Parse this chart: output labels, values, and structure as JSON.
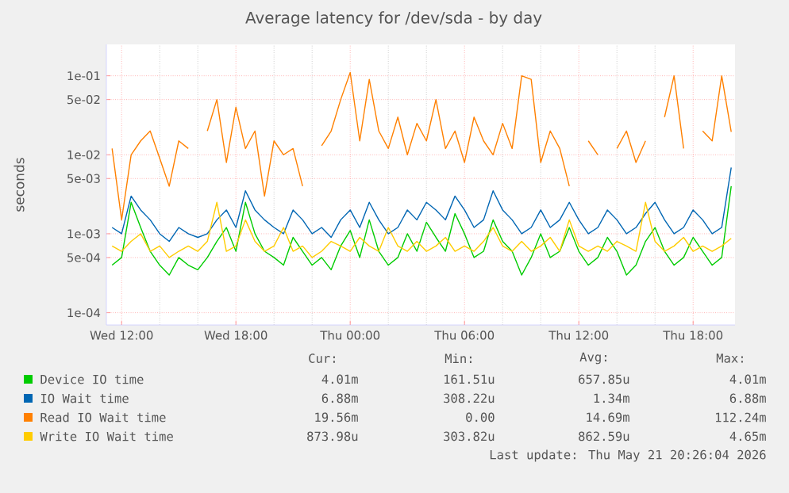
{
  "chart_data": {
    "type": "line",
    "title": "Average latency for /dev/sda - by day",
    "ylabel": "seconds",
    "log": "y",
    "grid": true,
    "legend": "bottom",
    "marker": "none",
    "line_style": "solid",
    "xlim": [
      "2026-05-20T11:12",
      "2026-05-21T20:12"
    ],
    "ylim": [
      7e-05,
      0.25
    ],
    "xticks": [
      {
        "value": "2026-05-20T12:00",
        "label": "Wed 12:00"
      },
      {
        "value": "2026-05-20T18:00",
        "label": "Wed 18:00"
      },
      {
        "value": "2026-05-21T00:00",
        "label": "Thu 00:00"
      },
      {
        "value": "2026-05-21T06:00",
        "label": "Thu 06:00"
      },
      {
        "value": "2026-05-21T12:00",
        "label": "Thu 12:00"
      },
      {
        "value": "2026-05-21T18:00",
        "label": "Thu 18:00"
      }
    ],
    "yticks": [
      {
        "value": 0.1,
        "label": "1e-01"
      },
      {
        "value": 0.05,
        "label": "5e-02"
      },
      {
        "value": 0.01,
        "label": "1e-02"
      },
      {
        "value": 0.005,
        "label": "5e-03"
      },
      {
        "value": 0.001,
        "label": "1e-03"
      },
      {
        "value": 0.0005,
        "label": "5e-04"
      },
      {
        "value": 0.0001,
        "label": "1e-04"
      }
    ],
    "x": [
      "2026-05-20T11:30",
      "2026-05-20T12:00",
      "2026-05-20T12:30",
      "2026-05-20T13:00",
      "2026-05-20T13:30",
      "2026-05-20T14:00",
      "2026-05-20T14:30",
      "2026-05-20T15:00",
      "2026-05-20T15:30",
      "2026-05-20T16:00",
      "2026-05-20T16:30",
      "2026-05-20T17:00",
      "2026-05-20T17:30",
      "2026-05-20T18:00",
      "2026-05-20T18:30",
      "2026-05-20T19:00",
      "2026-05-20T19:30",
      "2026-05-20T20:00",
      "2026-05-20T20:30",
      "2026-05-20T21:00",
      "2026-05-20T21:30",
      "2026-05-20T22:00",
      "2026-05-20T22:30",
      "2026-05-20T23:00",
      "2026-05-20T23:30",
      "2026-05-21T00:00",
      "2026-05-21T00:30",
      "2026-05-21T01:00",
      "2026-05-21T01:30",
      "2026-05-21T02:00",
      "2026-05-21T02:30",
      "2026-05-21T03:00",
      "2026-05-21T03:30",
      "2026-05-21T04:00",
      "2026-05-21T04:30",
      "2026-05-21T05:00",
      "2026-05-21T05:30",
      "2026-05-21T06:00",
      "2026-05-21T06:30",
      "2026-05-21T07:00",
      "2026-05-21T07:30",
      "2026-05-21T08:00",
      "2026-05-21T08:30",
      "2026-05-21T09:00",
      "2026-05-21T09:30",
      "2026-05-21T10:00",
      "2026-05-21T10:30",
      "2026-05-21T11:00",
      "2026-05-21T11:30",
      "2026-05-21T12:00",
      "2026-05-21T12:30",
      "2026-05-21T13:00",
      "2026-05-21T13:30",
      "2026-05-21T14:00",
      "2026-05-21T14:30",
      "2026-05-21T15:00",
      "2026-05-21T15:30",
      "2026-05-21T16:00",
      "2026-05-21T16:30",
      "2026-05-21T17:00",
      "2026-05-21T17:30",
      "2026-05-21T18:00",
      "2026-05-21T18:30",
      "2026-05-21T19:00",
      "2026-05-21T19:30",
      "2026-05-21T20:00"
    ],
    "series": [
      {
        "name": "Device IO time",
        "color": "#00cc00",
        "values": [
          0.0004,
          0.0005,
          0.0025,
          0.0012,
          0.0006,
          0.0004,
          0.0003,
          0.0005,
          0.0004,
          0.00035,
          0.0005,
          0.0008,
          0.0012,
          0.0006,
          0.0025,
          0.001,
          0.0006,
          0.0005,
          0.0004,
          0.0009,
          0.0006,
          0.0004,
          0.0005,
          0.00035,
          0.0007,
          0.0011,
          0.0005,
          0.0015,
          0.0006,
          0.0004,
          0.0005,
          0.001,
          0.0006,
          0.0014,
          0.0009,
          0.0006,
          0.0018,
          0.001,
          0.0005,
          0.0006,
          0.0015,
          0.0008,
          0.0006,
          0.0003,
          0.0005,
          0.001,
          0.0005,
          0.0006,
          0.0012,
          0.0006,
          0.0004,
          0.0005,
          0.0009,
          0.0006,
          0.0003,
          0.0004,
          0.0008,
          0.0012,
          0.0006,
          0.0004,
          0.0005,
          0.0009,
          0.0006,
          0.0004,
          0.0005,
          0.00401
        ]
      },
      {
        "name": "IO Wait time",
        "color": "#0066b3",
        "values": [
          0.0012,
          0.001,
          0.003,
          0.002,
          0.0015,
          0.001,
          0.0008,
          0.0012,
          0.001,
          0.0009,
          0.001,
          0.0015,
          0.002,
          0.0012,
          0.0035,
          0.002,
          0.0015,
          0.0012,
          0.001,
          0.002,
          0.0015,
          0.001,
          0.0012,
          0.0009,
          0.0015,
          0.002,
          0.0012,
          0.0025,
          0.0015,
          0.001,
          0.0012,
          0.002,
          0.0015,
          0.0025,
          0.002,
          0.0015,
          0.003,
          0.002,
          0.0012,
          0.0015,
          0.0035,
          0.002,
          0.0015,
          0.001,
          0.0012,
          0.002,
          0.0012,
          0.0015,
          0.0025,
          0.0015,
          0.001,
          0.0012,
          0.002,
          0.0015,
          0.001,
          0.0012,
          0.0018,
          0.0025,
          0.0015,
          0.001,
          0.0012,
          0.002,
          0.0015,
          0.001,
          0.0012,
          0.00688
        ]
      },
      {
        "name": "Read IO Wait time",
        "color": "#ff8000",
        "values": [
          0.012,
          0.0015,
          0.01,
          0.015,
          0.02,
          0.009,
          0.004,
          0.015,
          0.012,
          null,
          0.02,
          0.05,
          0.008,
          0.04,
          0.012,
          0.02,
          0.003,
          0.015,
          0.01,
          0.012,
          0.004,
          null,
          0.013,
          0.02,
          0.05,
          0.11,
          0.015,
          0.09,
          0.02,
          0.012,
          0.03,
          0.01,
          0.025,
          0.015,
          0.05,
          0.012,
          0.02,
          0.008,
          0.03,
          0.015,
          0.01,
          0.025,
          0.012,
          0.1,
          0.09,
          0.008,
          0.02,
          0.012,
          0.004,
          null,
          0.015,
          0.01,
          null,
          0.012,
          0.02,
          0.008,
          0.015,
          null,
          0.03,
          0.1,
          0.012,
          null,
          0.02,
          0.015,
          0.1,
          0.01956
        ]
      },
      {
        "name": "Write IO Wait time",
        "color": "#ffcc00",
        "values": [
          0.0007,
          0.0006,
          0.0008,
          0.001,
          0.0006,
          0.0007,
          0.0005,
          0.0006,
          0.0007,
          0.0006,
          0.0008,
          0.0025,
          0.0006,
          0.0007,
          0.0015,
          0.0008,
          0.0006,
          0.0007,
          0.0012,
          0.0006,
          0.0007,
          0.0005,
          0.0006,
          0.0008,
          0.0007,
          0.0006,
          0.0009,
          0.0007,
          0.0006,
          0.0012,
          0.0007,
          0.0006,
          0.0008,
          0.0006,
          0.0007,
          0.0009,
          0.0006,
          0.0007,
          0.0006,
          0.0008,
          0.0012,
          0.0007,
          0.0006,
          0.0008,
          0.0006,
          0.0007,
          0.0009,
          0.0006,
          0.0015,
          0.0007,
          0.0006,
          0.0007,
          0.0006,
          0.0008,
          0.0007,
          0.0006,
          0.0025,
          0.0008,
          0.0006,
          0.0007,
          0.0009,
          0.0006,
          0.0007,
          0.0006,
          0.0007,
          0.00087398
        ]
      }
    ],
    "annotations": [
      "Cur:",
      "Min:",
      "Avg:",
      "Max:",
      "4.01m",
      "161.51u",
      "657.85u",
      "4.01m",
      "6.88m",
      "308.22u",
      "1.34m",
      "6.88m",
      "19.56m",
      "0.00",
      "14.69m",
      "112.24m",
      "873.98u",
      "303.82u",
      "862.59u",
      "4.65m",
      "Last update: Thu May 21 20:26:04 2026"
    ]
  }
}
